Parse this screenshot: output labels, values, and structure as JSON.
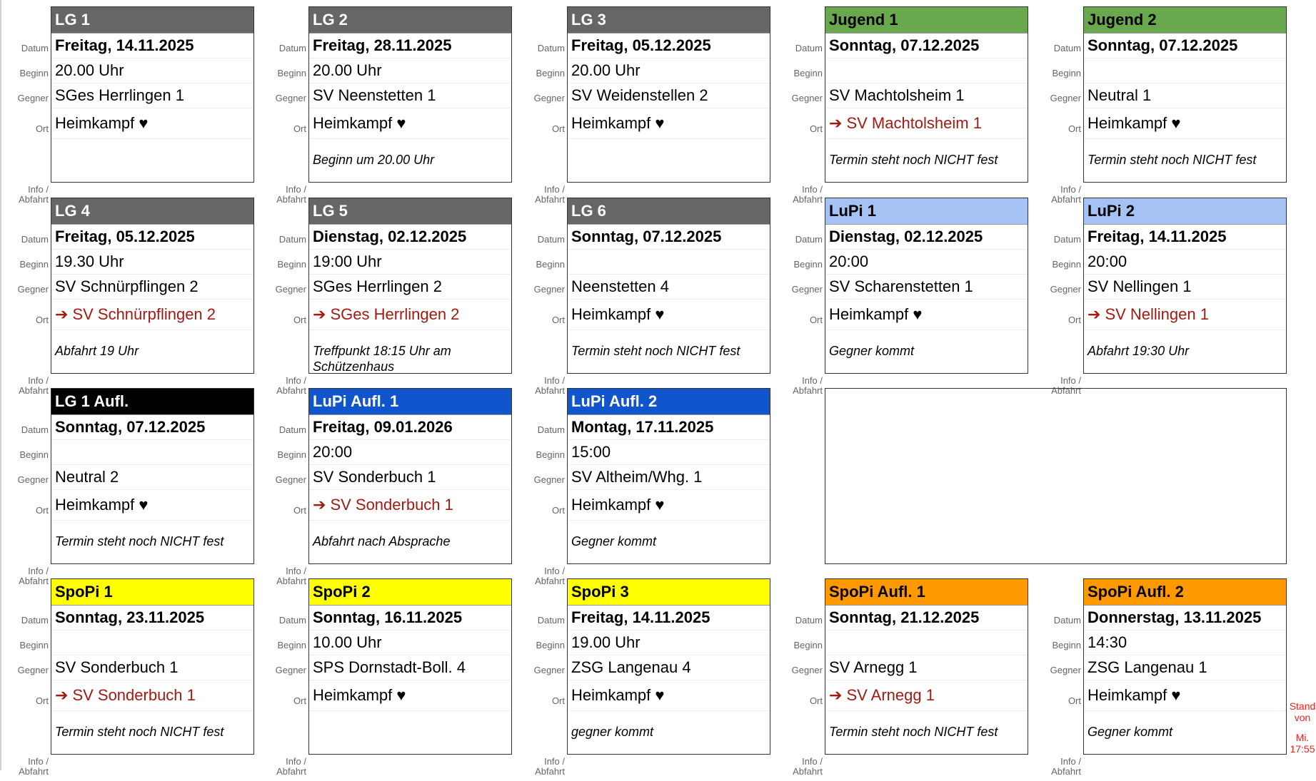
{
  "labels": {
    "datum": "Datum",
    "beginn": "Beginn",
    "gegner": "Gegner",
    "ort": "Ort",
    "info": "Info / Abfahrt"
  },
  "colors": {
    "away": "#a21a12",
    "stand": "#ff1a1a"
  },
  "cards": [
    {
      "title": "LG 1",
      "bg": "#666666",
      "fg": "#ffffff",
      "datum": "Freitag, 14.11.2025",
      "beginn": "20.00 Uhr",
      "gegner": "SGes Herrlingen 1",
      "ort": "Heimkampf ♥",
      "away": false,
      "info": ""
    },
    {
      "title": "LG 2",
      "bg": "#666666",
      "fg": "#ffffff",
      "datum": "Freitag, 28.11.2025",
      "beginn": "20.00 Uhr",
      "gegner": "SV Neenstetten 1",
      "ort": "Heimkampf ♥",
      "away": false,
      "info": "Beginn um 20.00 Uhr"
    },
    {
      "title": "LG 3",
      "bg": "#666666",
      "fg": "#ffffff",
      "datum": "Freitag, 05.12.2025",
      "beginn": "20.00 Uhr",
      "gegner": "SV Weidenstellen 2",
      "ort": "Heimkampf ♥",
      "away": false,
      "info": ""
    },
    {
      "title": "Jugend 1",
      "bg": "#6aa84f",
      "fg": "#000000",
      "datum": "Sonntag, 07.12.2025",
      "beginn": "",
      "gegner": "SV Machtolsheim 1",
      "ort": "SV Machtolsheim 1",
      "away": true,
      "info": "Termin steht noch NICHT fest"
    },
    {
      "title": "Jugend 2",
      "bg": "#6aa84f",
      "fg": "#000000",
      "datum": "Sonntag, 07.12.2025",
      "beginn": "",
      "gegner": "Neutral 1",
      "ort": "Heimkampf ♥",
      "away": false,
      "info": "Termin steht noch NICHT fest"
    },
    {
      "title": "LG 4",
      "bg": "#666666",
      "fg": "#ffffff",
      "datum": "Freitag, 05.12.2025",
      "beginn": "19.30 Uhr",
      "gegner": "SV Schnürpflingen 2",
      "ort": "SV Schnürpflingen 2",
      "away": true,
      "info": "Abfahrt 19 Uhr"
    },
    {
      "title": "LG 5",
      "bg": "#666666",
      "fg": "#ffffff",
      "datum": "Dienstag, 02.12.2025",
      "beginn": "19:00 Uhr",
      "gegner": "SGes Herrlingen 2",
      "ort": "SGes Herrlingen 2",
      "away": true,
      "info": "Treffpunkt 18:15 Uhr am Schützenhaus"
    },
    {
      "title": "LG 6",
      "bg": "#666666",
      "fg": "#ffffff",
      "datum": "Sonntag, 07.12.2025",
      "beginn": "",
      "gegner": "Neenstetten 4",
      "ort": "Heimkampf ♥",
      "away": false,
      "info": "Termin steht noch NICHT fest"
    },
    {
      "title": "LuPi 1",
      "bg": "#a4c2f4",
      "fg": "#000000",
      "datum": "Dienstag, 02.12.2025",
      "beginn": "20:00",
      "gegner": "SV Scharenstetten 1",
      "ort": "Heimkampf ♥",
      "away": false,
      "info": "Gegner kommt"
    },
    {
      "title": "LuPi 2",
      "bg": "#a4c2f4",
      "fg": "#000000",
      "datum": "Freitag, 14.11.2025",
      "beginn": "20:00",
      "gegner": "SV Nellingen 1",
      "ort": "SV Nellingen 1",
      "away": true,
      "info": "Abfahrt 19:30 Uhr"
    },
    {
      "title": "LG 1 Aufl.",
      "bg": "#000000",
      "fg": "#ffffff",
      "datum": "Sonntag, 07.12.2025",
      "beginn": "",
      "gegner": "Neutral 2",
      "ort": "Heimkampf ♥",
      "away": false,
      "info": "Termin steht noch NICHT fest"
    },
    {
      "title": "LuPi Aufl. 1",
      "bg": "#1155cc",
      "fg": "#ffffff",
      "datum": "Freitag, 09.01.2026",
      "beginn": "20:00",
      "gegner": "SV Sonderbuch 1",
      "ort": "SV Sonderbuch 1",
      "away": true,
      "info": "Abfahrt nach Absprache"
    },
    {
      "title": "LuPi Aufl. 2",
      "bg": "#1155cc",
      "fg": "#ffffff",
      "datum": "Montag, 17.11.2025",
      "beginn": "15:00",
      "gegner": "SV Altheim/Whg. 1",
      "ort": "Heimkampf ♥",
      "away": false,
      "info": "Gegner kommt"
    },
    {
      "title": "SpoPi 1",
      "bg": "#ffff00",
      "fg": "#000000",
      "datum": "Sonntag, 23.11.2025",
      "beginn": "",
      "gegner": "SV Sonderbuch 1",
      "ort": "SV Sonderbuch 1",
      "away": true,
      "info": "Termin steht noch NICHT fest"
    },
    {
      "title": "SpoPi 2",
      "bg": "#ffff00",
      "fg": "#000000",
      "datum": "Sonntag, 16.11.2025",
      "beginn": "10.00 Uhr",
      "gegner": "SPS Dornstadt-Boll. 4",
      "ort": "Heimkampf ♥",
      "away": false,
      "info": ""
    },
    {
      "title": "SpoPi 3",
      "bg": "#ffff00",
      "fg": "#000000",
      "datum": "Freitag, 14.11.2025",
      "beginn": "19.00 Uhr",
      "gegner": "ZSG Langenau 4",
      "ort": "Heimkampf ♥",
      "away": false,
      "info": "gegner kommt"
    },
    {
      "title": "SpoPi Aufl. 1",
      "bg": "#ff9900",
      "fg": "#000000",
      "datum": "Sonntag, 21.12.2025",
      "beginn": "",
      "gegner": "SV Arnegg 1",
      "ort": "SV Arnegg 1",
      "away": true,
      "info": "Termin steht noch NICHT fest"
    },
    {
      "title": "SpoPi Aufl. 2",
      "bg": "#ff9900",
      "fg": "#000000",
      "datum": "Donnerstag, 13.11.2025",
      "beginn": "14:30",
      "gegner": "ZSG Langenau 1",
      "ort": "Heimkampf ♥",
      "away": false,
      "info": "Gegner kommt"
    }
  ],
  "stand": {
    "line1": "Stand",
    "line2": "von",
    "line3": "Mi.",
    "line4": "17:55"
  }
}
